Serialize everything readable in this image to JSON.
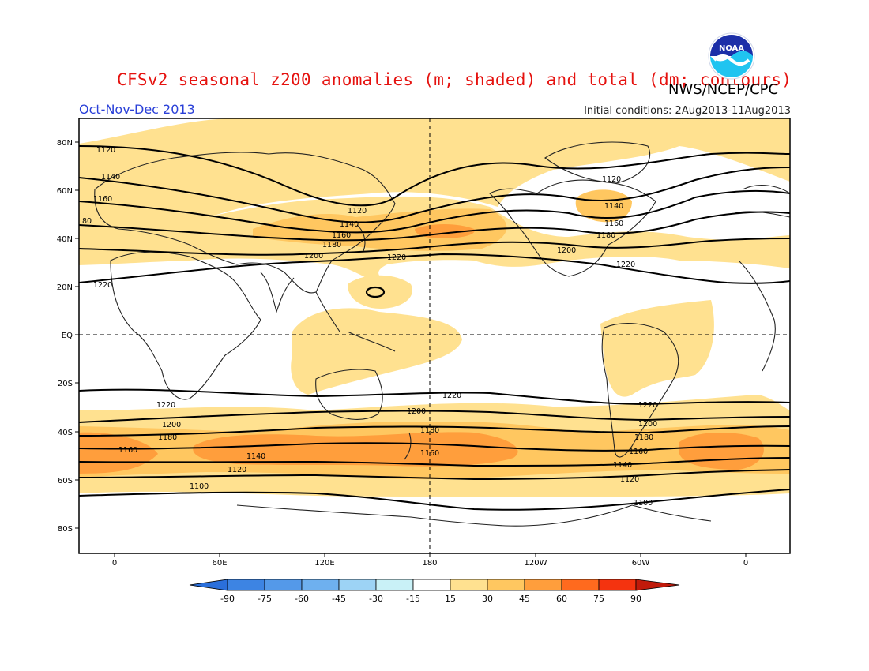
{
  "title": "CFSv2 seasonal z200 anomalies (m; shaded) and total (dm; contours)",
  "organization": "NWS/NCEP/CPC",
  "logo_text": "NOAA",
  "season": "Oct-Nov-Dec 2013",
  "initial_conditions": "Initial conditions: 2Aug2013-11Aug2013",
  "map": {
    "lat_tick_labels": [
      "80N",
      "60N",
      "40N",
      "20N",
      "EQ",
      "20S",
      "40S",
      "60S",
      "80S"
    ],
    "lon_tick_labels": [
      "0",
      "60E",
      "120E",
      "180",
      "120W",
      "60W",
      "0"
    ],
    "contour_labels": [
      "1100",
      "1120",
      "1140",
      "1160",
      "1180",
      "1200",
      "1220",
      "80"
    ]
  },
  "colorbar": {
    "labels": [
      "-90",
      "-75",
      "-60",
      "-45",
      "-30",
      "-15",
      "15",
      "30",
      "45",
      "60",
      "75",
      "90"
    ],
    "colors": [
      "#2a6fdb",
      "#3d84e3",
      "#5499e9",
      "#6eb0ef",
      "#9dd3f5",
      "#c9f1f7",
      "#ffffff",
      "#ffe190",
      "#ffc760",
      "#ff9e3c",
      "#ff6a1e",
      "#f4330f",
      "#c01a0a"
    ]
  }
}
